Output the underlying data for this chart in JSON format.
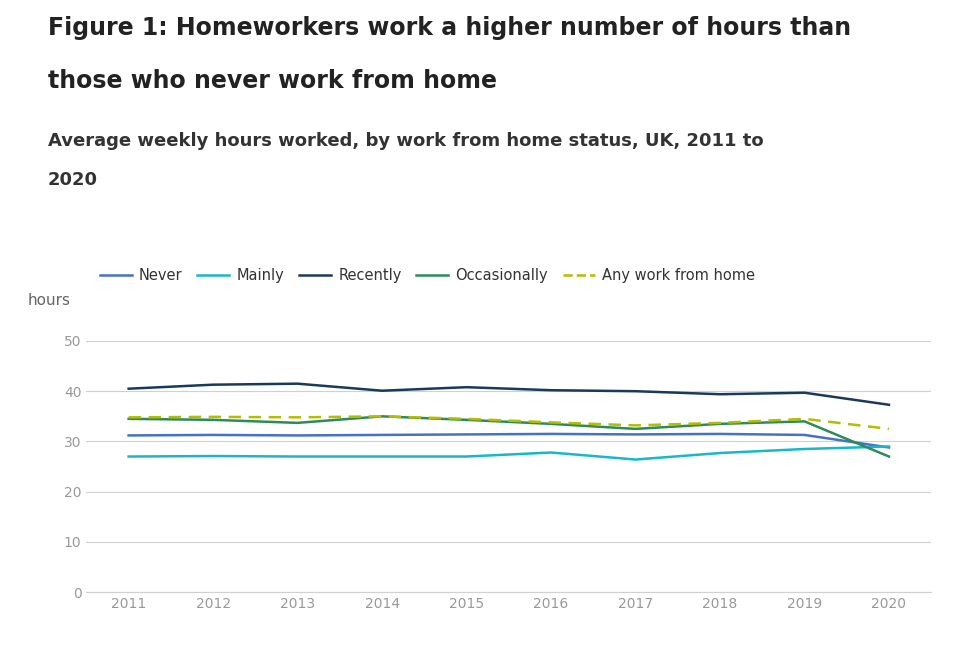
{
  "title_line1": "Figure 1: Homeworkers work a higher number of hours than",
  "title_line2": "those who never work from home",
  "subtitle_line1": "Average weekly hours worked, by work from home status, UK, 2011 to",
  "subtitle_line2": "2020",
  "ylabel": "hours",
  "years": [
    2011,
    2012,
    2013,
    2014,
    2015,
    2016,
    2017,
    2018,
    2019,
    2020
  ],
  "series": {
    "Never": {
      "values": [
        31.2,
        31.3,
        31.2,
        31.3,
        31.4,
        31.5,
        31.4,
        31.5,
        31.3,
        28.8
      ],
      "color": "#4472c4",
      "linestyle": "solid",
      "linewidth": 1.8
    },
    "Mainly": {
      "values": [
        27.0,
        27.1,
        27.0,
        27.0,
        27.0,
        27.8,
        26.4,
        27.7,
        28.5,
        29.0
      ],
      "color": "#17b8c8",
      "linestyle": "solid",
      "linewidth": 1.8
    },
    "Recently": {
      "values": [
        40.5,
        41.3,
        41.5,
        40.1,
        40.8,
        40.2,
        40.0,
        39.4,
        39.7,
        37.3
      ],
      "color": "#1a3a5c",
      "linestyle": "solid",
      "linewidth": 1.8
    },
    "Occasionally": {
      "values": [
        34.5,
        34.3,
        33.7,
        35.0,
        34.3,
        33.5,
        32.5,
        33.5,
        34.0,
        27.0
      ],
      "color": "#2e8b57",
      "linestyle": "solid",
      "linewidth": 1.8
    },
    "Any work from home": {
      "values": [
        34.8,
        34.9,
        34.8,
        35.0,
        34.5,
        33.8,
        33.2,
        33.7,
        34.5,
        32.5
      ],
      "color": "#b5bd00",
      "linestyle": "dashed",
      "linewidth": 1.8
    }
  },
  "ylim": [
    0,
    55
  ],
  "yticks": [
    0,
    10,
    20,
    30,
    40,
    50
  ],
  "xlim": [
    2010.5,
    2020.5
  ],
  "background_color": "#ffffff",
  "grid_color": "#d0d0d0",
  "title_fontsize": 17,
  "subtitle_fontsize": 13,
  "label_fontsize": 11,
  "tick_fontsize": 10,
  "legend_fontsize": 10.5,
  "title_color": "#222222",
  "subtitle_color": "#333333",
  "tick_color": "#999999"
}
